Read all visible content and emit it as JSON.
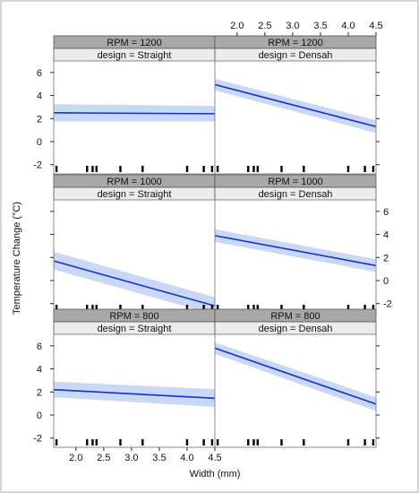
{
  "chart_data": {
    "type": "line",
    "title": "",
    "xlabel": "Width (mm)",
    "ylabel": "Temperature Change (°C)",
    "xlim": [
      1.6,
      4.5
    ],
    "ylim": [
      -2.8,
      7.0
    ],
    "x_ticks": [
      "2.0",
      "2.5",
      "3.0",
      "3.5",
      "4.0",
      "4.5"
    ],
    "y_ticks": [
      "-2",
      "0",
      "2",
      "4",
      "6"
    ],
    "grid": false,
    "legend": "none",
    "colors": {
      "line": "#1a2fcf",
      "band": "#c9d8f5",
      "strip_rpm": "#a8a8a8",
      "strip_design": "#ececec",
      "frame": "#888888"
    },
    "rug_x": [
      1.65,
      2.2,
      2.3,
      2.37,
      2.8,
      3.2,
      4.0,
      4.3,
      4.45
    ],
    "panels": [
      {
        "rpm_label": "RPM = 1200",
        "design_label": "design = Straight",
        "x": [
          1.6,
          4.5
        ],
        "fit": [
          2.5,
          2.42
        ],
        "lower": [
          1.75,
          1.75
        ],
        "upper": [
          3.25,
          3.1
        ]
      },
      {
        "rpm_label": "RPM = 1200",
        "design_label": "design = Densah",
        "x": [
          1.6,
          4.5
        ],
        "fit": [
          4.95,
          1.3
        ],
        "lower": [
          4.45,
          0.75
        ],
        "upper": [
          5.45,
          1.85
        ]
      },
      {
        "rpm_label": "RPM = 1000",
        "design_label": "design = Straight",
        "x": [
          1.6,
          4.5
        ],
        "fit": [
          1.7,
          -2.2
        ],
        "lower": [
          0.95,
          -2.95
        ],
        "upper": [
          2.5,
          -1.45
        ]
      },
      {
        "rpm_label": "RPM = 1000",
        "design_label": "design = Densah",
        "x": [
          1.6,
          4.5
        ],
        "fit": [
          3.9,
          1.3
        ],
        "lower": [
          3.35,
          0.75
        ],
        "upper": [
          4.45,
          1.85
        ]
      },
      {
        "rpm_label": "RPM = 800",
        "design_label": "design = Straight",
        "x": [
          1.6,
          4.5
        ],
        "fit": [
          2.2,
          1.45
        ],
        "lower": [
          1.55,
          0.7
        ],
        "upper": [
          2.9,
          2.25
        ]
      },
      {
        "rpm_label": "RPM = 800",
        "design_label": "design = Densah",
        "x": [
          1.6,
          4.5
        ],
        "fit": [
          5.8,
          0.95
        ],
        "lower": [
          5.3,
          0.35
        ],
        "upper": [
          6.3,
          1.55
        ]
      }
    ]
  }
}
